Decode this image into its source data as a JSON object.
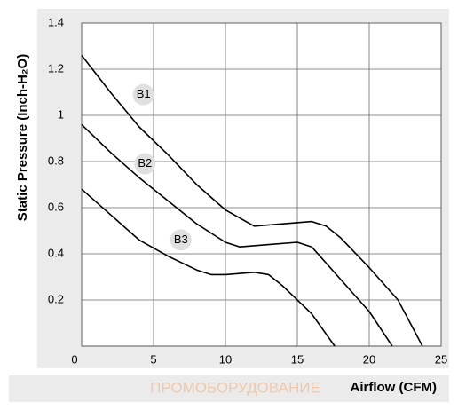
{
  "chart_data": {
    "type": "line",
    "xlabel": "Airflow (CFM)",
    "ylabel": "Static Pressure (Inch-H₂O)",
    "watermark": "ПРОМОБОРУДОВАНИЕ",
    "xlim": [
      0,
      25
    ],
    "xticks": [
      0,
      5,
      10,
      15,
      20,
      25
    ],
    "ylim": [
      0,
      1.4
    ],
    "yticks": [
      0.2,
      0.4,
      0.6,
      0.8,
      1,
      1.2,
      1.4
    ],
    "grid": true,
    "series": [
      {
        "name": "B1",
        "color": "#000000",
        "x": [
          0,
          2,
          4,
          6,
          8,
          10,
          12,
          14,
          16,
          17,
          18,
          20,
          22,
          23.7
        ],
        "values": [
          1.26,
          1.1,
          0.95,
          0.83,
          0.7,
          0.59,
          0.52,
          0.53,
          0.54,
          0.52,
          0.47,
          0.34,
          0.2,
          0
        ]
      },
      {
        "name": "B2",
        "color": "#000000",
        "x": [
          0,
          2,
          4,
          6,
          8,
          10,
          11,
          13,
          15,
          16,
          18,
          20,
          21.6
        ],
        "values": [
          0.96,
          0.84,
          0.73,
          0.63,
          0.53,
          0.45,
          0.43,
          0.44,
          0.45,
          0.43,
          0.29,
          0.15,
          0
        ]
      },
      {
        "name": "B3",
        "color": "#000000",
        "x": [
          0,
          2,
          4,
          6,
          8,
          9,
          10,
          12,
          13,
          14,
          16,
          17.6
        ],
        "values": [
          0.68,
          0.57,
          0.46,
          0.39,
          0.33,
          0.31,
          0.31,
          0.32,
          0.31,
          0.26,
          0.14,
          0
        ]
      }
    ]
  }
}
